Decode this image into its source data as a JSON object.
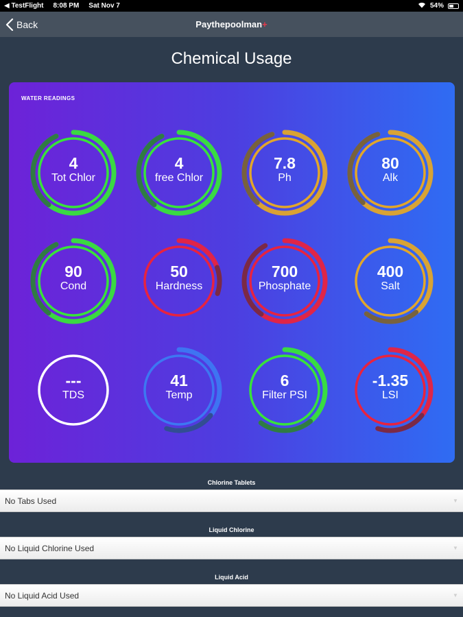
{
  "status_bar": {
    "carrier": "TestFlight",
    "time": "8:08 PM",
    "date": "Sat Nov 7",
    "battery": "54%",
    "battery_level": 0.54,
    "icons": [
      "back-arrow-icon",
      "wifi-icon",
      "battery-icon"
    ]
  },
  "nav": {
    "back_label": "Back",
    "app_name": "Paythepoolman",
    "app_suffix": "+"
  },
  "page": {
    "title": "Chemical Usage"
  },
  "water_readings": {
    "title": "WATER READINGS",
    "gauges": [
      {
        "value": "4",
        "label": "Tot Chlor",
        "color": "#38e33a",
        "fill": 0.93
      },
      {
        "value": "4",
        "label": "free Chlor",
        "color": "#38e33a",
        "fill": 0.93
      },
      {
        "value": "7.8",
        "label": "Ph",
        "color": "#e2a62a",
        "fill": 0.95
      },
      {
        "value": "80",
        "label": "Alk",
        "color": "#e2a62a",
        "fill": 0.95
      },
      {
        "value": "90",
        "label": "Cond",
        "color": "#38e33a",
        "fill": 0.93
      },
      {
        "value": "50",
        "label": "Hardness",
        "color": "#e8233f",
        "fill": 0.3
      },
      {
        "value": "700",
        "label": "Phosphate",
        "color": "#e8233f",
        "fill": 0.92
      },
      {
        "value": "400",
        "label": "Salt",
        "color": "#e2a62a",
        "fill": 0.6
      },
      {
        "value": "---",
        "label": "TDS",
        "color": "#ffffff",
        "fill": 0
      },
      {
        "value": "41",
        "label": "Temp",
        "color": "#3d77f2",
        "fill": 0.55
      },
      {
        "value": "6",
        "label": "Filter PSI",
        "color": "#38e33a",
        "fill": 0.6
      },
      {
        "value": "-1.35",
        "label": "LSI",
        "color": "#e8233f",
        "fill": 0.55
      }
    ]
  },
  "sections": [
    {
      "label": "Chlorine Tablets",
      "value": "No Tabs Used"
    },
    {
      "label": "Liquid Chlorine",
      "value": "No Liquid Chlorine Used"
    },
    {
      "label": "Liquid Acid",
      "value": "No Liquid Acid Used"
    }
  ]
}
